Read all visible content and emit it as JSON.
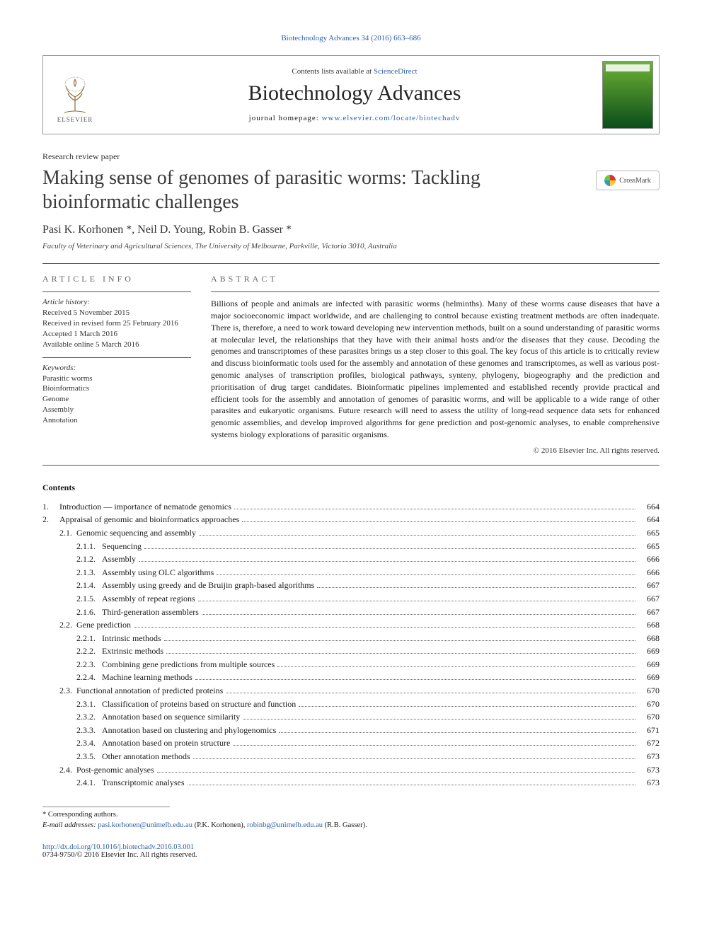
{
  "journal": {
    "citation_line": "Biotechnology Advances 34 (2016) 663–686",
    "contents_prefix": "Contents lists available at ",
    "contents_link_text": "ScienceDirect",
    "title": "Biotechnology Advances",
    "homepage_label": "journal homepage: ",
    "homepage_url": "www.elsevier.com/locate/biotechadv",
    "publisher_name": "ELSEVIER",
    "cover_label": "BIOTECHNOLOGY"
  },
  "article": {
    "type": "Research review paper",
    "title": "Making sense of genomes of parasitic worms: Tackling bioinformatic challenges",
    "crossmark_label": "CrossMark",
    "authors": "Pasi K. Korhonen *, Neil D. Young, Robin B. Gasser *",
    "affiliation": "Faculty of Veterinary and Agricultural Sciences, The University of Melbourne, Parkville, Victoria 3010, Australia"
  },
  "info": {
    "section_label": "ARTICLE INFO",
    "history_heading": "Article history:",
    "history": [
      "Received 5 November 2015",
      "Received in revised form 25 February 2016",
      "Accepted 1 March 2016",
      "Available online 5 March 2016"
    ],
    "keywords_heading": "Keywords:",
    "keywords": [
      "Parasitic worms",
      "Bioinformatics",
      "Genome",
      "Assembly",
      "Annotation"
    ]
  },
  "abstract": {
    "section_label": "ABSTRACT",
    "text": "Billions of people and animals are infected with parasitic worms (helminths). Many of these worms cause diseases that have a major socioeconomic impact worldwide, and are challenging to control because existing treatment methods are often inadequate. There is, therefore, a need to work toward developing new intervention methods, built on a sound understanding of parasitic worms at molecular level, the relationships that they have with their animal hosts and/or the diseases that they cause. Decoding the genomes and transcriptomes of these parasites brings us a step closer to this goal. The key focus of this article is to critically review and discuss bioinformatic tools used for the assembly and annotation of these genomes and transcriptomes, as well as various post-genomic analyses of transcription profiles, biological pathways, synteny, phylogeny, biogeography and the prediction and prioritisation of drug target candidates. Bioinformatic pipelines implemented and established recently provide practical and efficient tools for the assembly and annotation of genomes of parasitic worms, and will be applicable to a wide range of other parasites and eukaryotic organisms. Future research will need to assess the utility of long-read sequence data sets for enhanced genomic assemblies, and develop improved algorithms for gene prediction and post-genomic analyses, to enable comprehensive systems biology explorations of parasitic organisms.",
    "copyright": "© 2016 Elsevier Inc. All rights reserved."
  },
  "contents": {
    "heading": "Contents",
    "items": [
      {
        "level": 1,
        "num": "1.",
        "title": "Introduction — importance of nematode genomics",
        "page": "664"
      },
      {
        "level": 1,
        "num": "2.",
        "title": "Appraisal of genomic and bioinformatics approaches",
        "page": "664"
      },
      {
        "level": 2,
        "num": "2.1.",
        "title": "Genomic sequencing and assembly",
        "page": "665"
      },
      {
        "level": 3,
        "num": "2.1.1.",
        "title": "Sequencing",
        "page": "665"
      },
      {
        "level": 3,
        "num": "2.1.2.",
        "title": "Assembly",
        "page": "666"
      },
      {
        "level": 3,
        "num": "2.1.3.",
        "title": "Assembly using OLC algorithms",
        "page": "666"
      },
      {
        "level": 3,
        "num": "2.1.4.",
        "title": "Assembly using greedy and de Bruijin graph-based algorithms",
        "page": "667"
      },
      {
        "level": 3,
        "num": "2.1.5.",
        "title": "Assembly of repeat regions",
        "page": "667"
      },
      {
        "level": 3,
        "num": "2.1.6.",
        "title": "Third-generation assemblers",
        "page": "667"
      },
      {
        "level": 2,
        "num": "2.2.",
        "title": "Gene prediction",
        "page": "668"
      },
      {
        "level": 3,
        "num": "2.2.1.",
        "title": "Intrinsic methods",
        "page": "668"
      },
      {
        "level": 3,
        "num": "2.2.2.",
        "title": "Extrinsic methods",
        "page": "669"
      },
      {
        "level": 3,
        "num": "2.2.3.",
        "title": "Combining gene predictions from multiple sources",
        "page": "669"
      },
      {
        "level": 3,
        "num": "2.2.4.",
        "title": "Machine learning methods",
        "page": "669"
      },
      {
        "level": 2,
        "num": "2.3.",
        "title": "Functional annotation of predicted proteins",
        "page": "670"
      },
      {
        "level": 3,
        "num": "2.3.1.",
        "title": "Classification of proteins based on structure and function",
        "page": "670"
      },
      {
        "level": 3,
        "num": "2.3.2.",
        "title": "Annotation based on sequence similarity",
        "page": "670"
      },
      {
        "level": 3,
        "num": "2.3.3.",
        "title": "Annotation based on clustering and phylogenomics",
        "page": "671"
      },
      {
        "level": 3,
        "num": "2.3.4.",
        "title": "Annotation based on protein structure",
        "page": "672"
      },
      {
        "level": 3,
        "num": "2.3.5.",
        "title": "Other annotation methods",
        "page": "673"
      },
      {
        "level": 2,
        "num": "2.4.",
        "title": "Post-genomic analyses",
        "page": "673"
      },
      {
        "level": 3,
        "num": "2.4.1.",
        "title": "Transcriptomic analyses",
        "page": "673"
      }
    ]
  },
  "footnotes": {
    "corresponding_label": "* Corresponding authors.",
    "email_label": "E-mail addresses:",
    "emails": [
      {
        "addr": "pasi.korhonen@unimelb.edu.au",
        "person": "(P.K. Korhonen)"
      },
      {
        "addr": "robinbg@unimelb.edu.au",
        "person": "(R.B. Gasser)"
      }
    ],
    "doi": "http://dx.doi.org/10.1016/j.biotechadv.2016.03.001",
    "issn_copyright": "0734-9750/© 2016 Elsevier Inc. All rights reserved."
  },
  "colors": {
    "link": "#2c5fa5",
    "text": "#1a1a1a",
    "rule": "#555555",
    "cover_gradient_top": "#6db33f",
    "cover_gradient_bottom": "#0a4d1a"
  },
  "typography": {
    "body_pt": 12,
    "title_pt": 28,
    "journal_title_pt": 30,
    "authors_pt": 16,
    "footnote_pt": 10.5
  }
}
